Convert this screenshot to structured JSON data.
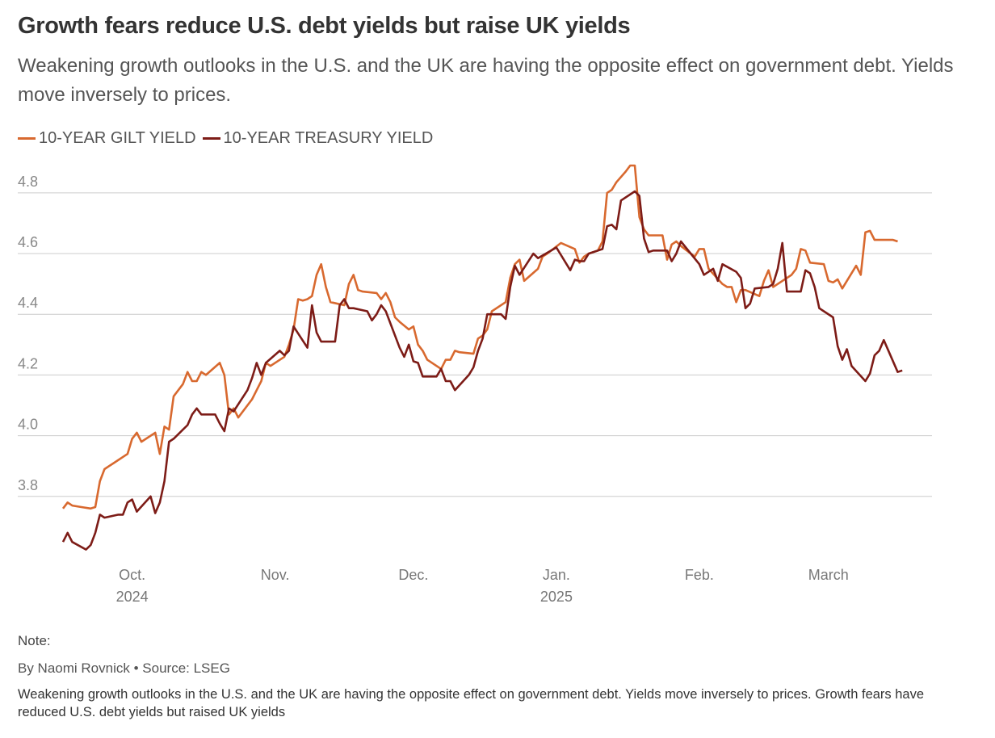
{
  "header": {
    "title": "Growth fears reduce U.S. debt yields but raise UK yields",
    "subtitle": "Weakening growth outlooks in the U.S. and the UK are having the opposite effect on government debt. Yields move inversely to prices."
  },
  "footer": {
    "note_label": "Note:",
    "byline": "By Naomi Rovnick",
    "separator": "•",
    "source": "Source: LSEG",
    "caption": "Weakening growth outlooks in the U.S. and the UK are having the opposite effect on government debt. Yields move inversely to prices. Growth fears have reduced U.S. debt yields but raised UK yields"
  },
  "chart_data": {
    "type": "line",
    "y_ticks": [
      "3.8",
      "4.0",
      "4.2",
      "4.4",
      "4.6",
      "4.8"
    ],
    "ylim": [
      3.6,
      4.93
    ],
    "x_range": [
      "2024-09-16",
      "2025-03-21"
    ],
    "grid": true,
    "legend_position": "top-left",
    "x_ticks": [
      {
        "date": "2024-10-01",
        "label": "Oct.",
        "sub": "2024"
      },
      {
        "date": "2024-11-01",
        "label": "Nov.",
        "sub": ""
      },
      {
        "date": "2024-12-01",
        "label": "Dec.",
        "sub": ""
      },
      {
        "date": "2025-01-01",
        "label": "Jan.",
        "sub": "2025"
      },
      {
        "date": "2025-02-01",
        "label": "Feb.",
        "sub": ""
      },
      {
        "date": "2025-03-01",
        "label": "March",
        "sub": ""
      }
    ],
    "series": [
      {
        "name": "10-YEAR GILT YIELD",
        "color": "#d8692f",
        "points": [
          [
            "2024-09-16",
            3.76
          ],
          [
            "2024-09-17",
            3.78
          ],
          [
            "2024-09-18",
            3.77
          ],
          [
            "2024-09-20",
            3.765
          ],
          [
            "2024-09-22",
            3.76
          ],
          [
            "2024-09-23",
            3.765
          ],
          [
            "2024-09-24",
            3.85
          ],
          [
            "2024-09-25",
            3.89
          ],
          [
            "2024-09-26",
            3.9
          ],
          [
            "2024-09-27",
            3.91
          ],
          [
            "2024-09-29",
            3.93
          ],
          [
            "2024-09-30",
            3.94
          ],
          [
            "2024-10-01",
            3.99
          ],
          [
            "2024-10-02",
            4.01
          ],
          [
            "2024-10-03",
            3.98
          ],
          [
            "2024-10-06",
            4.01
          ],
          [
            "2024-10-07",
            3.94
          ],
          [
            "2024-10-08",
            4.03
          ],
          [
            "2024-10-09",
            4.02
          ],
          [
            "2024-10-10",
            4.13
          ],
          [
            "2024-10-12",
            4.17
          ],
          [
            "2024-10-13",
            4.21
          ],
          [
            "2024-10-14",
            4.18
          ],
          [
            "2024-10-15",
            4.18
          ],
          [
            "2024-10-16",
            4.21
          ],
          [
            "2024-10-17",
            4.2
          ],
          [
            "2024-10-20",
            4.24
          ],
          [
            "2024-10-21",
            4.2
          ],
          [
            "2024-10-22",
            4.07
          ],
          [
            "2024-10-23",
            4.09
          ],
          [
            "2024-10-24",
            4.06
          ],
          [
            "2024-10-27",
            4.12
          ],
          [
            "2024-10-28",
            4.15
          ],
          [
            "2024-10-29",
            4.18
          ],
          [
            "2024-10-30",
            4.24
          ],
          [
            "2024-10-31",
            4.23
          ],
          [
            "2024-11-03",
            4.26
          ],
          [
            "2024-11-04",
            4.3
          ],
          [
            "2024-11-05",
            4.35
          ],
          [
            "2024-11-06",
            4.45
          ],
          [
            "2024-11-07",
            4.445
          ],
          [
            "2024-11-08",
            4.45
          ],
          [
            "2024-11-09",
            4.46
          ],
          [
            "2024-11-10",
            4.53
          ],
          [
            "2024-11-11",
            4.565
          ],
          [
            "2024-11-12",
            4.49
          ],
          [
            "2024-11-13",
            4.44
          ],
          [
            "2024-11-16",
            4.43
          ],
          [
            "2024-11-17",
            4.5
          ],
          [
            "2024-11-18",
            4.53
          ],
          [
            "2024-11-19",
            4.48
          ],
          [
            "2024-11-20",
            4.475
          ],
          [
            "2024-11-23",
            4.47
          ],
          [
            "2024-11-24",
            4.45
          ],
          [
            "2024-11-25",
            4.47
          ],
          [
            "2024-11-26",
            4.44
          ],
          [
            "2024-11-27",
            4.39
          ],
          [
            "2024-11-28",
            4.375
          ],
          [
            "2024-11-30",
            4.35
          ],
          [
            "2024-12-01",
            4.36
          ],
          [
            "2024-12-02",
            4.3
          ],
          [
            "2024-12-03",
            4.28
          ],
          [
            "2024-12-04",
            4.25
          ],
          [
            "2024-12-07",
            4.22
          ],
          [
            "2024-12-08",
            4.25
          ],
          [
            "2024-12-09",
            4.25
          ],
          [
            "2024-12-10",
            4.28
          ],
          [
            "2024-12-11",
            4.275
          ],
          [
            "2024-12-14",
            4.27
          ],
          [
            "2024-12-15",
            4.32
          ],
          [
            "2024-12-16",
            4.33
          ],
          [
            "2024-12-17",
            4.35
          ],
          [
            "2024-12-18",
            4.41
          ],
          [
            "2024-12-21",
            4.44
          ],
          [
            "2024-12-22",
            4.52
          ],
          [
            "2024-12-23",
            4.565
          ],
          [
            "2024-12-24",
            4.58
          ],
          [
            "2024-12-25",
            4.51
          ],
          [
            "2024-12-28",
            4.55
          ],
          [
            "2024-12-29",
            4.59
          ],
          [
            "2024-12-30",
            4.6
          ],
          [
            "2025-01-02",
            4.635
          ],
          [
            "2025-01-05",
            4.615
          ],
          [
            "2025-01-06",
            4.57
          ],
          [
            "2025-01-07",
            4.59
          ],
          [
            "2025-01-08",
            4.6
          ],
          [
            "2025-01-10",
            4.61
          ],
          [
            "2025-01-11",
            4.64
          ],
          [
            "2025-01-12",
            4.8
          ],
          [
            "2025-01-13",
            4.81
          ],
          [
            "2025-01-14",
            4.835
          ],
          [
            "2025-01-16",
            4.87
          ],
          [
            "2025-01-17",
            4.89
          ],
          [
            "2025-01-18",
            4.89
          ],
          [
            "2025-01-19",
            4.72
          ],
          [
            "2025-01-20",
            4.68
          ],
          [
            "2025-01-21",
            4.66
          ],
          [
            "2025-01-24",
            4.66
          ],
          [
            "2025-01-25",
            4.58
          ],
          [
            "2025-01-26",
            4.63
          ],
          [
            "2025-01-27",
            4.64
          ],
          [
            "2025-01-28",
            4.625
          ],
          [
            "2025-01-31",
            4.59
          ],
          [
            "2025-02-01",
            4.615
          ],
          [
            "2025-02-02",
            4.615
          ],
          [
            "2025-02-03",
            4.55
          ],
          [
            "2025-02-06",
            4.5
          ],
          [
            "2025-02-07",
            4.49
          ],
          [
            "2025-02-08",
            4.49
          ],
          [
            "2025-02-09",
            4.44
          ],
          [
            "2025-02-10",
            4.48
          ],
          [
            "2025-02-11",
            4.48
          ],
          [
            "2025-02-14",
            4.46
          ],
          [
            "2025-02-15",
            4.51
          ],
          [
            "2025-02-16",
            4.545
          ],
          [
            "2025-02-17",
            4.49
          ],
          [
            "2025-02-18",
            4.5
          ],
          [
            "2025-02-21",
            4.53
          ],
          [
            "2025-02-22",
            4.55
          ],
          [
            "2025-02-23",
            4.615
          ],
          [
            "2025-02-24",
            4.61
          ],
          [
            "2025-02-25",
            4.57
          ],
          [
            "2025-02-28",
            4.565
          ],
          [
            "2025-03-01",
            4.51
          ],
          [
            "2025-03-02",
            4.505
          ],
          [
            "2025-03-03",
            4.515
          ],
          [
            "2025-03-04",
            4.485
          ],
          [
            "2025-03-07",
            4.56
          ],
          [
            "2025-03-08",
            4.53
          ],
          [
            "2025-03-09",
            4.67
          ],
          [
            "2025-03-10",
            4.675
          ],
          [
            "2025-03-11",
            4.645
          ],
          [
            "2025-03-14",
            4.645
          ],
          [
            "2025-03-15",
            4.645
          ],
          [
            "2025-03-16",
            4.64
          ]
        ]
      },
      {
        "name": "10-YEAR TREASURY YIELD",
        "color": "#7d1c17",
        "points": [
          [
            "2024-09-16",
            3.65
          ],
          [
            "2024-09-17",
            3.68
          ],
          [
            "2024-09-18",
            3.65
          ],
          [
            "2024-09-21",
            3.625
          ],
          [
            "2024-09-22",
            3.64
          ],
          [
            "2024-09-23",
            3.68
          ],
          [
            "2024-09-24",
            3.74
          ],
          [
            "2024-09-25",
            3.73
          ],
          [
            "2024-09-28",
            3.74
          ],
          [
            "2024-09-29",
            3.74
          ],
          [
            "2024-09-30",
            3.78
          ],
          [
            "2024-10-01",
            3.79
          ],
          [
            "2024-10-02",
            3.75
          ],
          [
            "2024-10-05",
            3.8
          ],
          [
            "2024-10-06",
            3.745
          ],
          [
            "2024-10-07",
            3.78
          ],
          [
            "2024-10-08",
            3.85
          ],
          [
            "2024-10-09",
            3.98
          ],
          [
            "2024-10-10",
            3.99
          ],
          [
            "2024-10-12",
            4.02
          ],
          [
            "2024-10-13",
            4.035
          ],
          [
            "2024-10-14",
            4.07
          ],
          [
            "2024-10-15",
            4.09
          ],
          [
            "2024-10-16",
            4.07
          ],
          [
            "2024-10-19",
            4.07
          ],
          [
            "2024-10-20",
            4.04
          ],
          [
            "2024-10-21",
            4.015
          ],
          [
            "2024-10-22",
            4.09
          ],
          [
            "2024-10-23",
            4.08
          ],
          [
            "2024-10-26",
            4.15
          ],
          [
            "2024-10-27",
            4.19
          ],
          [
            "2024-10-28",
            4.24
          ],
          [
            "2024-10-29",
            4.2
          ],
          [
            "2024-10-30",
            4.24
          ],
          [
            "2024-11-02",
            4.28
          ],
          [
            "2024-11-03",
            4.265
          ],
          [
            "2024-11-04",
            4.28
          ],
          [
            "2024-11-05",
            4.36
          ],
          [
            "2024-11-08",
            4.29
          ],
          [
            "2024-11-09",
            4.43
          ],
          [
            "2024-11-10",
            4.34
          ],
          [
            "2024-11-11",
            4.31
          ],
          [
            "2024-11-14",
            4.31
          ],
          [
            "2024-11-15",
            4.43
          ],
          [
            "2024-11-16",
            4.45
          ],
          [
            "2024-11-17",
            4.42
          ],
          [
            "2024-11-18",
            4.42
          ],
          [
            "2024-11-21",
            4.41
          ],
          [
            "2024-11-22",
            4.38
          ],
          [
            "2024-11-23",
            4.4
          ],
          [
            "2024-11-24",
            4.43
          ],
          [
            "2024-11-25",
            4.41
          ],
          [
            "2024-11-28",
            4.29
          ],
          [
            "2024-11-29",
            4.26
          ],
          [
            "2024-11-30",
            4.3
          ],
          [
            "2024-12-01",
            4.245
          ],
          [
            "2024-12-02",
            4.24
          ],
          [
            "2024-12-03",
            4.195
          ],
          [
            "2024-12-06",
            4.195
          ],
          [
            "2024-12-07",
            4.22
          ],
          [
            "2024-12-08",
            4.18
          ],
          [
            "2024-12-09",
            4.18
          ],
          [
            "2024-12-10",
            4.15
          ],
          [
            "2024-12-13",
            4.2
          ],
          [
            "2024-12-14",
            4.225
          ],
          [
            "2024-12-15",
            4.28
          ],
          [
            "2024-12-16",
            4.32
          ],
          [
            "2024-12-17",
            4.4
          ],
          [
            "2024-12-20",
            4.4
          ],
          [
            "2024-12-21",
            4.385
          ],
          [
            "2024-12-22",
            4.49
          ],
          [
            "2024-12-23",
            4.56
          ],
          [
            "2024-12-24",
            4.53
          ],
          [
            "2024-12-27",
            4.6
          ],
          [
            "2024-12-28",
            4.585
          ],
          [
            "2025-01-01",
            4.62
          ],
          [
            "2025-01-04",
            4.545
          ],
          [
            "2025-01-05",
            4.58
          ],
          [
            "2025-01-06",
            4.575
          ],
          [
            "2025-01-07",
            4.575
          ],
          [
            "2025-01-08",
            4.6
          ],
          [
            "2025-01-11",
            4.615
          ],
          [
            "2025-01-12",
            4.69
          ],
          [
            "2025-01-13",
            4.695
          ],
          [
            "2025-01-14",
            4.68
          ],
          [
            "2025-01-15",
            4.775
          ],
          [
            "2025-01-18",
            4.805
          ],
          [
            "2025-01-19",
            4.79
          ],
          [
            "2025-01-20",
            4.65
          ],
          [
            "2025-01-21",
            4.605
          ],
          [
            "2025-01-22",
            4.61
          ],
          [
            "2025-01-25",
            4.61
          ],
          [
            "2025-01-26",
            4.575
          ],
          [
            "2025-01-27",
            4.6
          ],
          [
            "2025-01-28",
            4.64
          ],
          [
            "2025-02-01",
            4.565
          ],
          [
            "2025-02-02",
            4.53
          ],
          [
            "2025-02-03",
            4.54
          ],
          [
            "2025-02-04",
            4.55
          ],
          [
            "2025-02-05",
            4.51
          ],
          [
            "2025-02-06",
            4.565
          ],
          [
            "2025-02-09",
            4.54
          ],
          [
            "2025-02-10",
            4.52
          ],
          [
            "2025-02-11",
            4.42
          ],
          [
            "2025-02-12",
            4.435
          ],
          [
            "2025-02-13",
            4.485
          ],
          [
            "2025-02-16",
            4.49
          ],
          [
            "2025-02-17",
            4.5
          ],
          [
            "2025-02-18",
            4.55
          ],
          [
            "2025-02-19",
            4.635
          ],
          [
            "2025-02-20",
            4.475
          ],
          [
            "2025-02-23",
            4.475
          ],
          [
            "2025-02-24",
            4.545
          ],
          [
            "2025-02-25",
            4.535
          ],
          [
            "2025-02-26",
            4.49
          ],
          [
            "2025-02-27",
            4.42
          ],
          [
            "2025-03-02",
            4.39
          ],
          [
            "2025-03-03",
            4.295
          ],
          [
            "2025-03-04",
            4.25
          ],
          [
            "2025-03-05",
            4.285
          ],
          [
            "2025-03-06",
            4.23
          ],
          [
            "2025-03-09",
            4.18
          ],
          [
            "2025-03-10",
            4.205
          ],
          [
            "2025-03-11",
            4.265
          ],
          [
            "2025-03-12",
            4.28
          ],
          [
            "2025-03-13",
            4.315
          ],
          [
            "2025-03-16",
            4.21
          ],
          [
            "2025-03-17",
            4.215
          ]
        ]
      }
    ]
  }
}
